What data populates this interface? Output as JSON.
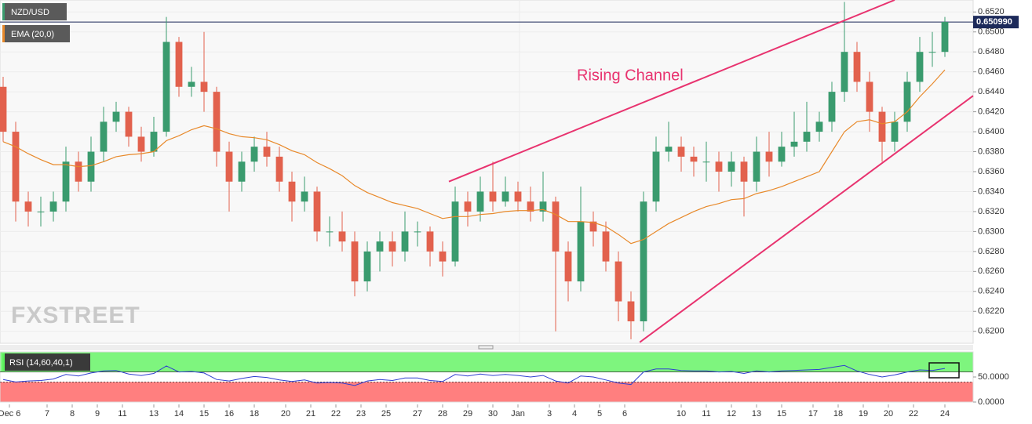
{
  "chart_data": {
    "type": "candlestick",
    "symbol": "NZD/USD",
    "indicator_label": "EMA (20,0)",
    "rsi_label": "RSI (14,60,40,1)",
    "watermark": "FXSTREET",
    "annotation": "Rising Channel",
    "up_color": "#3a9b6e",
    "down_color": "#e2614d",
    "ema_color": "#e8892a",
    "rsi_color": "#2f3fd1",
    "channel_color": "#e8336f",
    "last_price": {
      "value": 0.65099,
      "label": "0.650990"
    },
    "ylim": [
      0.6188,
      0.6532
    ],
    "yticks": [
      {
        "value": 0.62,
        "label": "0.6200"
      },
      {
        "value": 0.622,
        "label": "0.6220"
      },
      {
        "value": 0.624,
        "label": "0.6240"
      },
      {
        "value": 0.626,
        "label": "0.6260"
      },
      {
        "value": 0.628,
        "label": "0.6280"
      },
      {
        "value": 0.63,
        "label": "0.6300"
      },
      {
        "value": 0.632,
        "label": "0.6320"
      },
      {
        "value": 0.634,
        "label": "0.6340"
      },
      {
        "value": 0.636,
        "label": "0.6360"
      },
      {
        "value": 0.638,
        "label": "0.6380"
      },
      {
        "value": 0.64,
        "label": "0.6400"
      },
      {
        "value": 0.642,
        "label": "0.6420"
      },
      {
        "value": 0.644,
        "label": "0.6440"
      },
      {
        "value": 0.646,
        "label": "0.6460"
      },
      {
        "value": 0.648,
        "label": "0.6480"
      },
      {
        "value": 0.65,
        "label": "0.6500"
      },
      {
        "value": 0.652,
        "label": "0.6520"
      }
    ],
    "xlim": [
      -0.25,
      77.25
    ],
    "xticks": [
      {
        "value": 0.5,
        "label": "Dec 6"
      },
      {
        "value": 3.5,
        "label": "7"
      },
      {
        "value": 5.5,
        "label": "8"
      },
      {
        "value": 7.5,
        "label": "9"
      },
      {
        "value": 9.5,
        "label": "11"
      },
      {
        "value": 12,
        "label": "13"
      },
      {
        "value": 14,
        "label": "14"
      },
      {
        "value": 16,
        "label": "15"
      },
      {
        "value": 18,
        "label": "16"
      },
      {
        "value": 20,
        "label": "18"
      },
      {
        "value": 22.5,
        "label": "20"
      },
      {
        "value": 24.5,
        "label": "21"
      },
      {
        "value": 26.5,
        "label": "22"
      },
      {
        "value": 28.5,
        "label": "23"
      },
      {
        "value": 30.5,
        "label": "25"
      },
      {
        "value": 33,
        "label": "27"
      },
      {
        "value": 35,
        "label": "28"
      },
      {
        "value": 37,
        "label": "29"
      },
      {
        "value": 39,
        "label": "30"
      },
      {
        "value": 41,
        "label": "Jan"
      },
      {
        "value": 43.5,
        "label": "3"
      },
      {
        "value": 45.5,
        "label": "4"
      },
      {
        "value": 47.5,
        "label": "5"
      },
      {
        "value": 49.5,
        "label": "6"
      },
      {
        "value": 54,
        "label": "10"
      },
      {
        "value": 56,
        "label": "11"
      },
      {
        "value": 58,
        "label": "12"
      },
      {
        "value": 60,
        "label": "13"
      },
      {
        "value": 62,
        "label": "15"
      },
      {
        "value": 64.5,
        "label": "17"
      },
      {
        "value": 66.5,
        "label": "18"
      },
      {
        "value": 68.5,
        "label": "19"
      },
      {
        "value": 70.5,
        "label": "20"
      },
      {
        "value": 72.5,
        "label": "22"
      },
      {
        "value": 75,
        "label": "24"
      }
    ],
    "open": [
      0.6445,
      0.64,
      0.633,
      0.632,
      0.632,
      0.633,
      0.637,
      0.635,
      0.638,
      0.641,
      0.642,
      0.6395,
      0.638,
      0.64,
      0.649,
      0.6445,
      0.645,
      0.644,
      0.638,
      0.635,
      0.637,
      0.6385,
      0.6375,
      0.635,
      0.633,
      0.634,
      0.63,
      0.63,
      0.629,
      0.625,
      0.628,
      0.629,
      0.628,
      0.63,
      0.63,
      0.628,
      0.627,
      0.633,
      0.632,
      0.634,
      0.633,
      0.634,
      0.633,
      0.632,
      0.633,
      0.628,
      0.625,
      0.631,
      0.63,
      0.627,
      0.623,
      0.621,
      0.633,
      0.638,
      0.6385,
      0.6375,
      0.637,
      0.637,
      0.636,
      0.637,
      0.635,
      0.638,
      0.637,
      0.6385,
      0.639,
      0.64,
      0.641,
      0.644,
      0.648,
      0.645,
      0.642,
      0.639,
      0.641,
      0.645,
      0.648,
      0.648
    ],
    "high": [
      0.6455,
      0.641,
      0.634,
      0.6335,
      0.634,
      0.6385,
      0.638,
      0.6395,
      0.6425,
      0.643,
      0.6425,
      0.6405,
      0.6415,
      0.6515,
      0.6495,
      0.6465,
      0.65,
      0.6445,
      0.639,
      0.638,
      0.6395,
      0.64,
      0.6385,
      0.636,
      0.6355,
      0.6345,
      0.6315,
      0.632,
      0.63,
      0.629,
      0.63,
      0.63,
      0.632,
      0.631,
      0.6305,
      0.629,
      0.6345,
      0.634,
      0.6355,
      0.637,
      0.6355,
      0.635,
      0.6345,
      0.636,
      0.6335,
      0.629,
      0.6345,
      0.632,
      0.631,
      0.628,
      0.624,
      0.634,
      0.6395,
      0.641,
      0.6395,
      0.6385,
      0.639,
      0.638,
      0.638,
      0.6375,
      0.6395,
      0.64,
      0.64,
      0.642,
      0.643,
      0.642,
      0.645,
      0.653,
      0.649,
      0.646,
      0.6425,
      0.642,
      0.646,
      0.6495,
      0.65,
      0.6515
    ],
    "low": [
      0.639,
      0.631,
      0.6305,
      0.6305,
      0.631,
      0.632,
      0.634,
      0.634,
      0.637,
      0.64,
      0.6385,
      0.637,
      0.6375,
      0.6395,
      0.6435,
      0.6435,
      0.642,
      0.6365,
      0.632,
      0.634,
      0.636,
      0.6365,
      0.634,
      0.631,
      0.632,
      0.629,
      0.6285,
      0.628,
      0.6235,
      0.624,
      0.626,
      0.6265,
      0.627,
      0.6285,
      0.6265,
      0.6255,
      0.6265,
      0.6305,
      0.631,
      0.632,
      0.6325,
      0.632,
      0.631,
      0.631,
      0.62,
      0.623,
      0.624,
      0.6285,
      0.626,
      0.621,
      0.6192,
      0.62,
      0.632,
      0.637,
      0.636,
      0.6355,
      0.635,
      0.634,
      0.6345,
      0.6315,
      0.634,
      0.6355,
      0.6365,
      0.6375,
      0.638,
      0.639,
      0.64,
      0.643,
      0.644,
      0.64,
      0.637,
      0.638,
      0.64,
      0.644,
      0.6465,
      0.6475
    ],
    "close": [
      0.64,
      0.633,
      0.632,
      0.632,
      0.633,
      0.637,
      0.635,
      0.638,
      0.641,
      0.642,
      0.6395,
      0.638,
      0.64,
      0.649,
      0.6445,
      0.645,
      0.644,
      0.638,
      0.635,
      0.637,
      0.6385,
      0.6375,
      0.635,
      0.633,
      0.634,
      0.63,
      0.63,
      0.629,
      0.625,
      0.628,
      0.629,
      0.628,
      0.63,
      0.63,
      0.628,
      0.627,
      0.633,
      0.632,
      0.634,
      0.633,
      0.634,
      0.633,
      0.632,
      0.633,
      0.628,
      0.625,
      0.631,
      0.63,
      0.627,
      0.623,
      0.621,
      0.633,
      0.638,
      0.6385,
      0.6375,
      0.637,
      0.637,
      0.636,
      0.637,
      0.635,
      0.638,
      0.637,
      0.6385,
      0.639,
      0.64,
      0.641,
      0.644,
      0.648,
      0.645,
      0.642,
      0.639,
      0.641,
      0.645,
      0.648,
      0.648,
      0.651
    ],
    "ema": [
      0.639,
      0.6385,
      0.6378,
      0.6372,
      0.6367,
      0.6367,
      0.6365,
      0.6366,
      0.637,
      0.6375,
      0.6377,
      0.6378,
      0.638,
      0.6391,
      0.6396,
      0.6402,
      0.6406,
      0.6403,
      0.6398,
      0.6395,
      0.6394,
      0.6392,
      0.6387,
      0.6381,
      0.6377,
      0.6369,
      0.6363,
      0.6356,
      0.6346,
      0.6339,
      0.6334,
      0.6329,
      0.6326,
      0.6323,
      0.6318,
      0.6313,
      0.6315,
      0.6315,
      0.6317,
      0.6318,
      0.632,
      0.6321,
      0.6321,
      0.6322,
      0.6317,
      0.631,
      0.631,
      0.6309,
      0.6305,
      0.6297,
      0.6288,
      0.6292,
      0.63,
      0.6308,
      0.6314,
      0.632,
      0.6325,
      0.6328,
      0.6332,
      0.6333,
      0.6338,
      0.6341,
      0.6345,
      0.635,
      0.6355,
      0.636,
      0.638,
      0.64,
      0.641,
      0.6412,
      0.6408,
      0.641,
      0.642,
      0.6435,
      0.6448,
      0.6462
    ],
    "rsi": [
      45,
      40,
      42,
      43,
      46,
      55,
      52,
      58,
      62,
      63,
      56,
      53,
      57,
      72,
      60,
      61,
      58,
      45,
      42,
      47,
      51,
      49,
      44,
      41,
      44,
      38,
      39,
      38,
      33,
      42,
      45,
      43,
      48,
      48,
      43,
      41,
      55,
      52,
      56,
      53,
      55,
      53,
      50,
      53,
      42,
      38,
      52,
      50,
      44,
      38,
      35,
      60,
      66,
      66,
      63,
      62,
      62,
      60,
      61,
      57,
      62,
      60,
      62,
      63,
      64,
      65,
      69,
      73,
      62,
      55,
      50,
      54,
      60,
      64,
      63,
      67
    ],
    "rsi_ylim": [
      0,
      100
    ],
    "rsi_upper": 60,
    "rsi_lower": 40,
    "rsi_yticks": [
      {
        "value": 50,
        "label": "50.0000"
      },
      {
        "value": 0,
        "label": "0.0000"
      }
    ],
    "channel_lines": [
      {
        "x": [
          35.5,
          71
        ],
        "y": [
          0.635,
          0.6532
        ]
      },
      {
        "x": [
          50.7,
          77.25
        ],
        "y": [
          0.6189,
          0.6436
        ]
      }
    ]
  }
}
